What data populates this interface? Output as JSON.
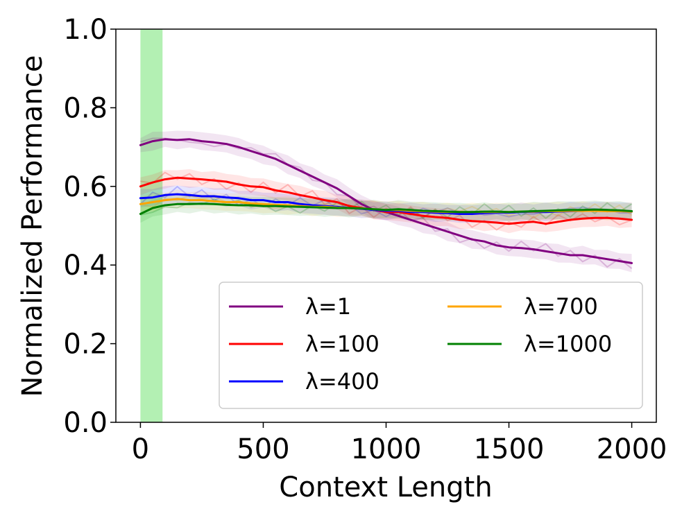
{
  "chart_data": {
    "type": "line",
    "title": "",
    "xlabel": "Context Length",
    "ylabel": "Normalized Performance",
    "xlim": [
      -100,
      2100
    ],
    "ylim": [
      0.0,
      1.0
    ],
    "xticks": [
      0,
      500,
      1000,
      1500,
      2000
    ],
    "xtick_labels": [
      "0",
      "500",
      "1000",
      "1500",
      "2000"
    ],
    "yticks": [
      0.0,
      0.2,
      0.4,
      0.6,
      0.8,
      1.0
    ],
    "ytick_labels": [
      "0.0",
      "0.2",
      "0.4",
      "0.6",
      "0.8",
      "1.0"
    ],
    "grid": false,
    "legend_position": "lower-right",
    "legend_columns": 2,
    "shaded_region": {
      "x": [
        0,
        90
      ],
      "color": "#b3f0b3"
    },
    "series": [
      {
        "name": "λ=1",
        "color": "#800080",
        "x": [
          0,
          50,
          100,
          150,
          200,
          250,
          300,
          350,
          400,
          450,
          500,
          550,
          600,
          650,
          700,
          750,
          800,
          850,
          900,
          950,
          1000,
          1050,
          1100,
          1150,
          1200,
          1250,
          1300,
          1350,
          1400,
          1450,
          1500,
          1550,
          1600,
          1650,
          1700,
          1750,
          1800,
          1850,
          1900,
          1950,
          2000
        ],
        "y": [
          0.705,
          0.715,
          0.72,
          0.718,
          0.72,
          0.715,
          0.712,
          0.708,
          0.7,
          0.69,
          0.68,
          0.67,
          0.655,
          0.64,
          0.625,
          0.61,
          0.595,
          0.575,
          0.555,
          0.54,
          0.535,
          0.525,
          0.515,
          0.505,
          0.495,
          0.485,
          0.475,
          0.465,
          0.46,
          0.45,
          0.445,
          0.443,
          0.44,
          0.435,
          0.43,
          0.425,
          0.425,
          0.42,
          0.415,
          0.41,
          0.405
        ]
      },
      {
        "name": "λ=100",
        "color": "#ff0000",
        "x": [
          0,
          50,
          100,
          150,
          200,
          250,
          300,
          350,
          400,
          450,
          500,
          550,
          600,
          650,
          700,
          750,
          800,
          850,
          900,
          950,
          1000,
          1050,
          1100,
          1150,
          1200,
          1250,
          1300,
          1350,
          1400,
          1450,
          1500,
          1550,
          1600,
          1650,
          1700,
          1750,
          1800,
          1850,
          1900,
          1950,
          2000
        ],
        "y": [
          0.6,
          0.61,
          0.618,
          0.622,
          0.62,
          0.618,
          0.615,
          0.612,
          0.605,
          0.6,
          0.598,
          0.59,
          0.585,
          0.578,
          0.572,
          0.565,
          0.56,
          0.55,
          0.545,
          0.54,
          0.535,
          0.535,
          0.53,
          0.525,
          0.522,
          0.52,
          0.515,
          0.512,
          0.51,
          0.508,
          0.505,
          0.508,
          0.51,
          0.505,
          0.51,
          0.515,
          0.518,
          0.52,
          0.52,
          0.518,
          0.515
        ]
      },
      {
        "name": "λ=400",
        "color": "#0000ff",
        "x": [
          0,
          50,
          100,
          150,
          200,
          250,
          300,
          350,
          400,
          450,
          500,
          550,
          600,
          650,
          700,
          750,
          800,
          850,
          900,
          950,
          1000,
          1050,
          1100,
          1150,
          1200,
          1250,
          1300,
          1350,
          1400,
          1450,
          1500,
          1550,
          1600,
          1650,
          1700,
          1750,
          1800,
          1850,
          1900,
          1950,
          2000
        ],
        "y": [
          0.57,
          0.572,
          0.578,
          0.58,
          0.578,
          0.575,
          0.575,
          0.572,
          0.57,
          0.565,
          0.565,
          0.56,
          0.56,
          0.555,
          0.552,
          0.55,
          0.548,
          0.545,
          0.543,
          0.54,
          0.538,
          0.538,
          0.535,
          0.535,
          0.533,
          0.532,
          0.53,
          0.53,
          0.532,
          0.533,
          0.533,
          0.535,
          0.535,
          0.535,
          0.536,
          0.537,
          0.538,
          0.538,
          0.538,
          0.537,
          0.536
        ]
      },
      {
        "name": "λ=700",
        "color": "#ffa500",
        "x": [
          0,
          50,
          100,
          150,
          200,
          250,
          300,
          350,
          400,
          450,
          500,
          550,
          600,
          650,
          700,
          750,
          800,
          850,
          900,
          950,
          1000,
          1050,
          1100,
          1150,
          1200,
          1250,
          1300,
          1350,
          1400,
          1450,
          1500,
          1550,
          1600,
          1650,
          1700,
          1750,
          1800,
          1850,
          1900,
          1950,
          2000
        ],
        "y": [
          0.555,
          0.56,
          0.565,
          0.568,
          0.565,
          0.565,
          0.562,
          0.56,
          0.56,
          0.557,
          0.555,
          0.553,
          0.552,
          0.55,
          0.548,
          0.548,
          0.546,
          0.545,
          0.544,
          0.542,
          0.54,
          0.54,
          0.538,
          0.537,
          0.536,
          0.535,
          0.535,
          0.535,
          0.535,
          0.535,
          0.535,
          0.536,
          0.536,
          0.537,
          0.537,
          0.538,
          0.538,
          0.538,
          0.537,
          0.537,
          0.536
        ]
      },
      {
        "name": "λ=1000",
        "color": "#008000",
        "x": [
          0,
          50,
          100,
          150,
          200,
          250,
          300,
          350,
          400,
          450,
          500,
          550,
          600,
          650,
          700,
          750,
          800,
          850,
          900,
          950,
          1000,
          1050,
          1100,
          1150,
          1200,
          1250,
          1300,
          1350,
          1400,
          1450,
          1500,
          1550,
          1600,
          1650,
          1700,
          1750,
          1800,
          1850,
          1900,
          1950,
          2000
        ],
        "y": [
          0.53,
          0.545,
          0.552,
          0.555,
          0.555,
          0.556,
          0.555,
          0.553,
          0.552,
          0.552,
          0.55,
          0.55,
          0.549,
          0.548,
          0.547,
          0.546,
          0.545,
          0.545,
          0.544,
          0.542,
          0.54,
          0.542,
          0.54,
          0.538,
          0.537,
          0.536,
          0.535,
          0.535,
          0.536,
          0.536,
          0.535,
          0.536,
          0.537,
          0.538,
          0.539,
          0.54,
          0.54,
          0.541,
          0.54,
          0.539,
          0.537
        ]
      }
    ]
  }
}
